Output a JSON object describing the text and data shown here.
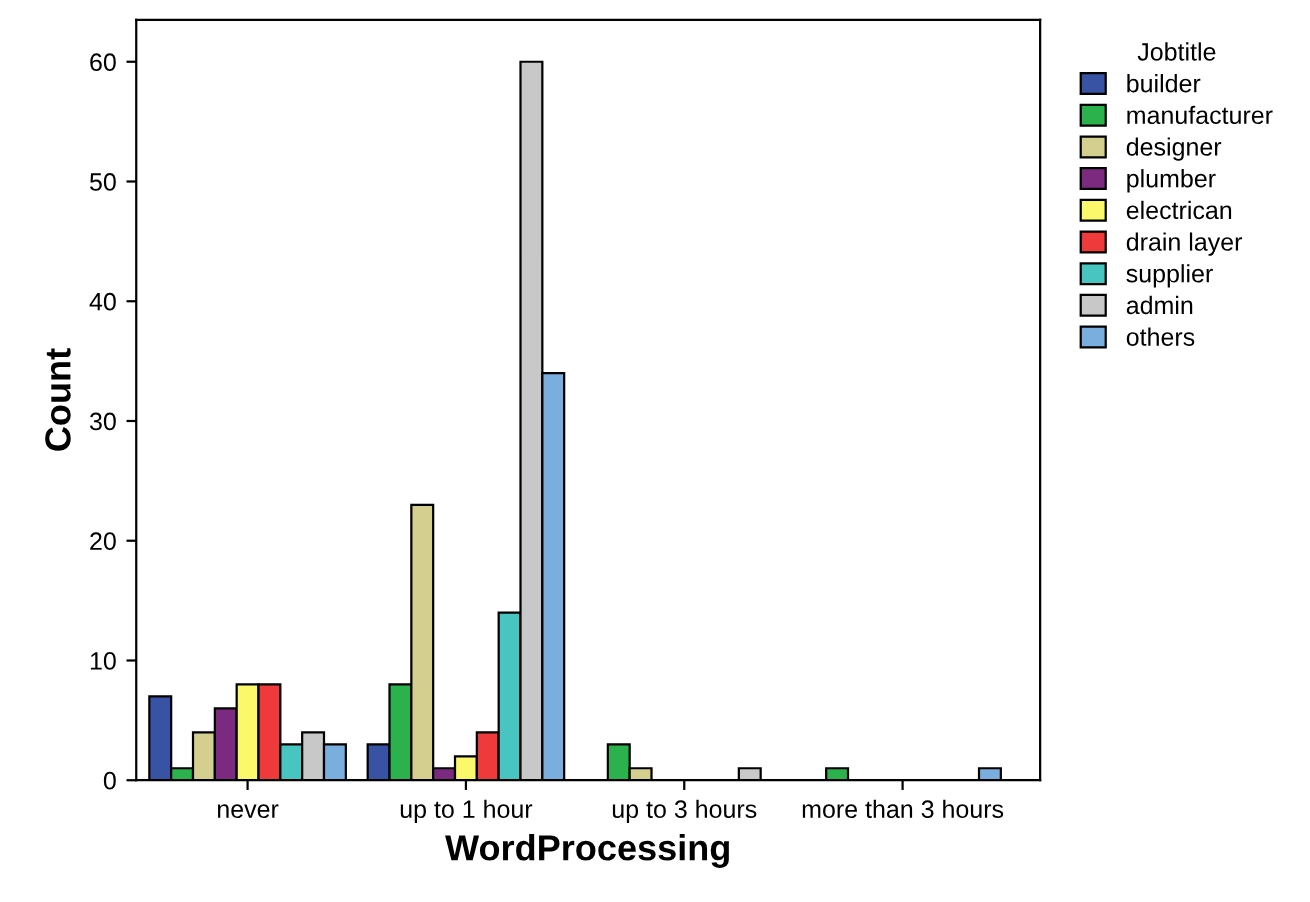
{
  "chart_data": {
    "type": "bar",
    "xlabel": "WordProcessing",
    "ylabel": "Count",
    "legend_title": "Jobtitle",
    "legend": "right",
    "categories": [
      "never",
      "up to 1 hour",
      "up to 3 hours",
      "more than 3 hours"
    ],
    "ylim": [
      0,
      63.5
    ],
    "yticks": [
      0,
      10,
      20,
      30,
      40,
      50,
      60
    ],
    "grid": false,
    "series": [
      {
        "name": "builder",
        "color": "#3953a4",
        "values": [
          7,
          3,
          null,
          null
        ]
      },
      {
        "name": "manufacturer",
        "color": "#2bb24c",
        "values": [
          1,
          8,
          3,
          1
        ]
      },
      {
        "name": "designer",
        "color": "#d4cf8f",
        "values": [
          4,
          23,
          1,
          null
        ]
      },
      {
        "name": "plumber",
        "color": "#7c2a80",
        "values": [
          6,
          1,
          null,
          null
        ]
      },
      {
        "name": "electrican",
        "color": "#fbf96b",
        "values": [
          8,
          2,
          null,
          null
        ]
      },
      {
        "name": "drain layer",
        "color": "#ee3a3a",
        "values": [
          8,
          4,
          null,
          null
        ]
      },
      {
        "name": "supplier",
        "color": "#48c5c0",
        "values": [
          3,
          14,
          null,
          null
        ]
      },
      {
        "name": "admin",
        "color": "#c8c8c8",
        "values": [
          4,
          60,
          1,
          null
        ]
      },
      {
        "name": "others",
        "color": "#7aaede",
        "values": [
          3,
          34,
          null,
          1
        ]
      }
    ]
  }
}
